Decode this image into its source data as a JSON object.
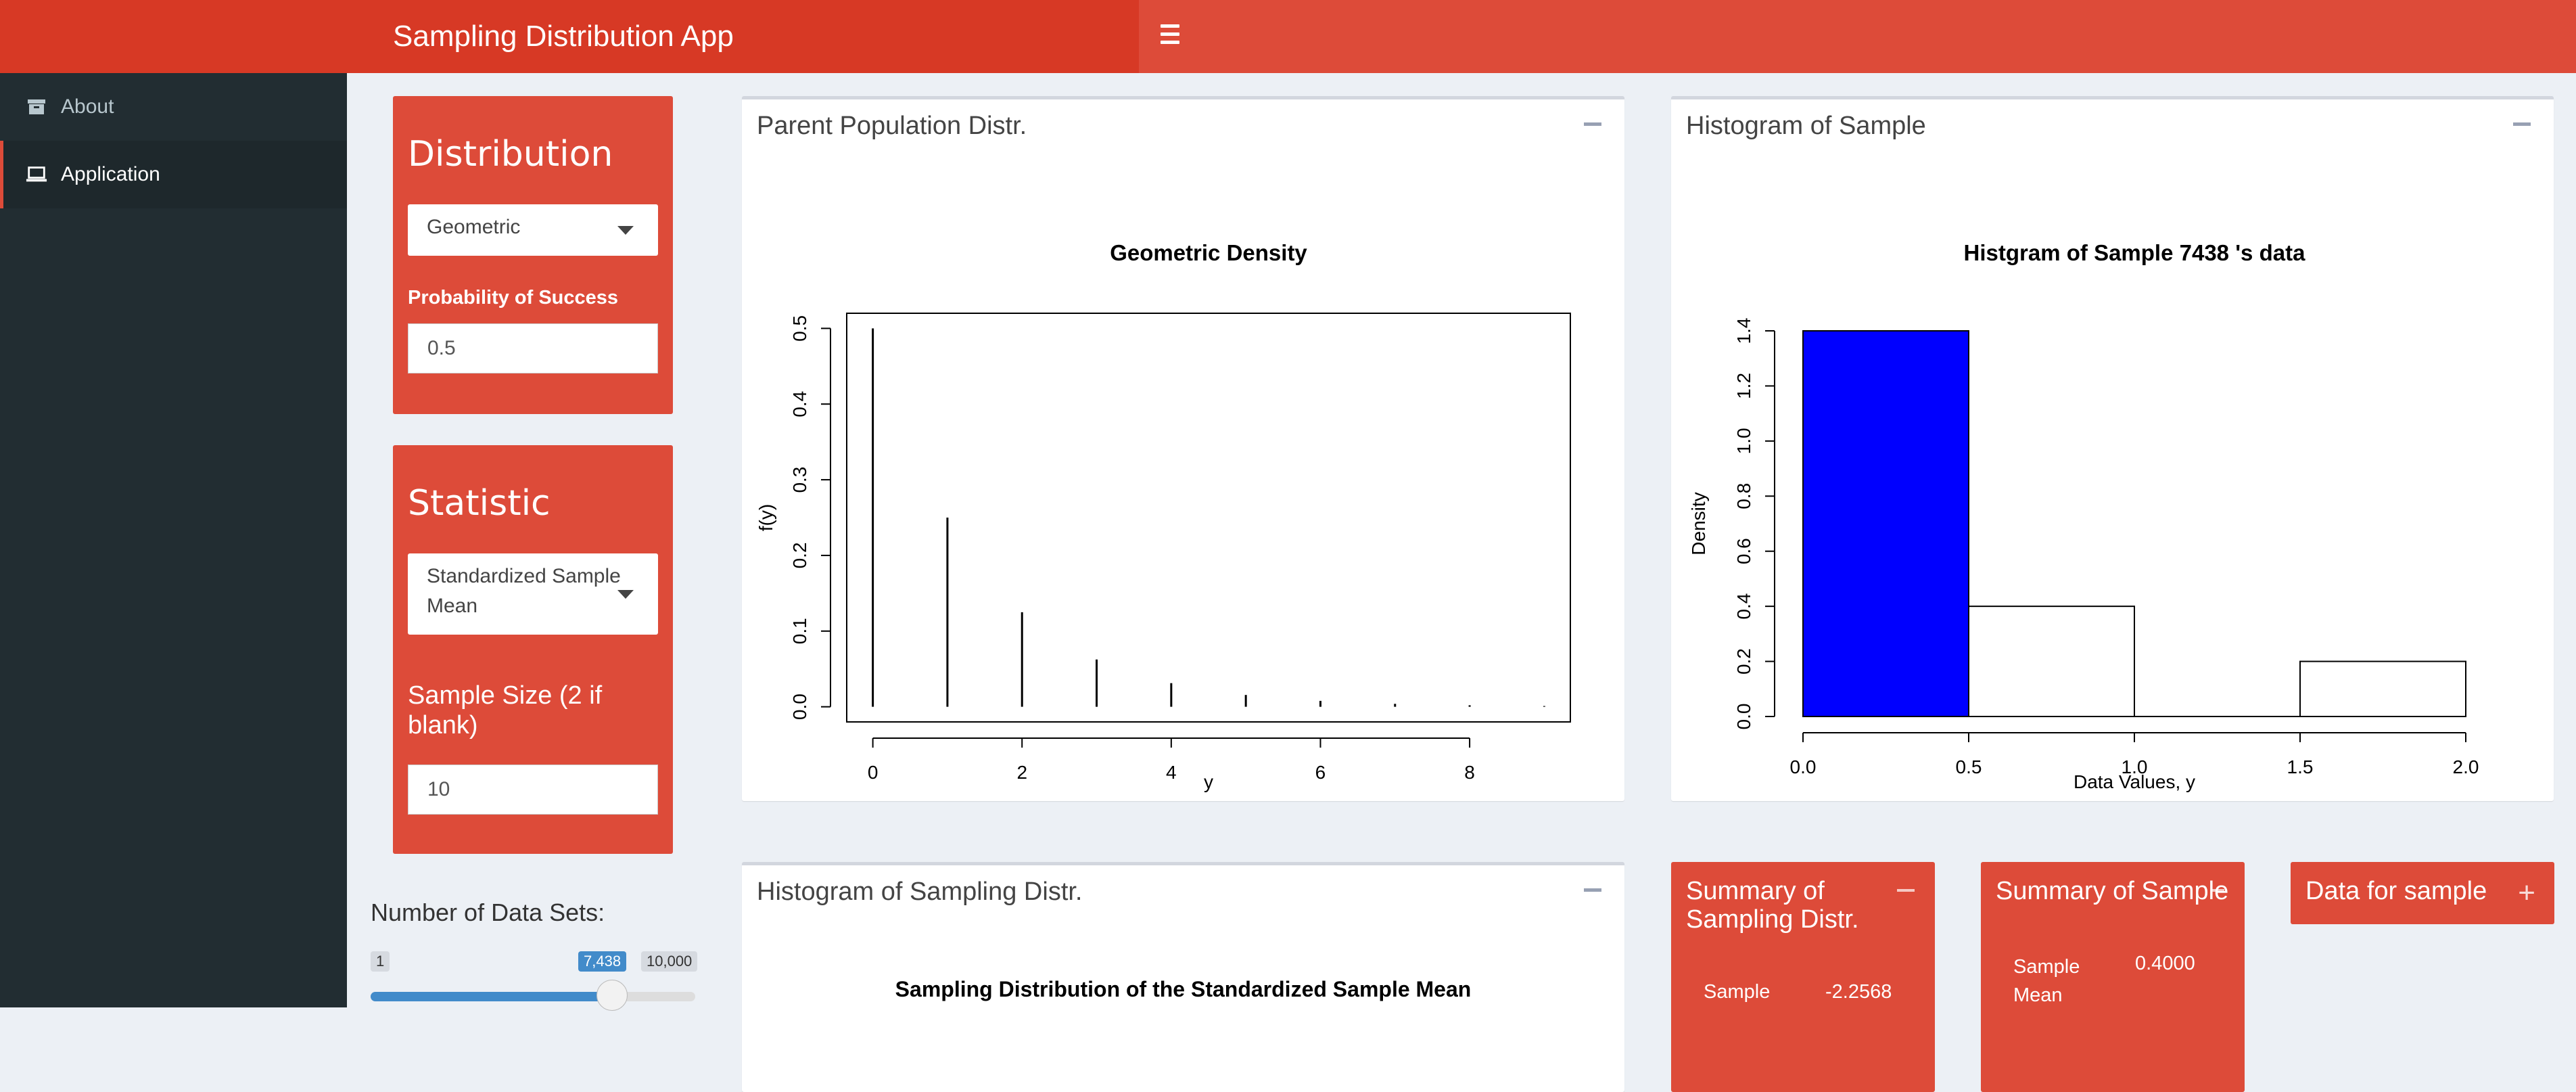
{
  "app": {
    "title": "Sampling Distribution App"
  },
  "colors": {
    "accent": "#dd4b39",
    "accent_dark": "#d73925",
    "sidebar": "#222d32",
    "content_bg": "#ecf0f5",
    "bar_fill": "#0000ff"
  },
  "sidebar": {
    "items": [
      {
        "label": "About",
        "icon": "archive-icon"
      },
      {
        "label": "Application",
        "icon": "laptop-icon"
      }
    ]
  },
  "controls": {
    "distribution": {
      "title": "Distribution",
      "selected": "Geometric",
      "param_label": "Probability of Success",
      "param_value": "0.5"
    },
    "statistic": {
      "title": "Statistic",
      "selected_line1": "Standardized Sample",
      "selected_line2": "Mean",
      "size_label_line1": "Sample Size (2 if",
      "size_label_line2": "blank)",
      "size_value": "10"
    },
    "datasets": {
      "label": "Number of Data Sets:",
      "min": "1",
      "max": "10,000",
      "value": "7,438",
      "fraction": 0.7438
    }
  },
  "panels": {
    "parent": {
      "title": "Parent Population Distr."
    },
    "histogram": {
      "title": "Histogram of Sample"
    },
    "sampling": {
      "title": "Histogram of Sampling Distr.",
      "plot_title": "Sampling Distribution of the Standardized Sample Mean"
    }
  },
  "boxes": {
    "summary_sampling": {
      "title_line1": "Summary of",
      "title_line2": "Sampling Distr.",
      "row_label": "Sample",
      "row_value": "-2.2568"
    },
    "summary_sample": {
      "title": "Summary of Sample",
      "row_label_line1": "Sample",
      "row_label_line2": "Mean",
      "row_value": "0.4000"
    },
    "data_sample": {
      "title": "Data for sample"
    }
  },
  "chart_data": [
    {
      "type": "bar",
      "title": "Geometric  Density",
      "xlabel": "y",
      "ylabel": "f(y)",
      "x": [
        0,
        1,
        2,
        3,
        4,
        5,
        6,
        7,
        8,
        9
      ],
      "values": [
        0.5,
        0.25,
        0.125,
        0.0625,
        0.03125,
        0.015625,
        0.0078125,
        0.0039,
        0.002,
        0.001
      ],
      "xlim": [
        -0.35,
        9.35
      ],
      "ylim": [
        -0.02,
        0.52
      ],
      "xticks": [
        "0",
        "2",
        "4",
        "6",
        "8"
      ],
      "yticks": [
        "0.0",
        "0.1",
        "0.2",
        "0.3",
        "0.4",
        "0.5"
      ],
      "grid": false
    },
    {
      "type": "bar",
      "title": "Histgram of Sample  7438 's data",
      "xlabel": "Data Values, y",
      "ylabel": "Density",
      "bins": [
        [
          0,
          0.5
        ],
        [
          0.5,
          1.0
        ],
        [
          1.0,
          1.5
        ],
        [
          1.5,
          2.0
        ]
      ],
      "values": [
        1.4,
        0.4,
        0.0,
        0.2
      ],
      "highlight_bin": 0,
      "xlim": [
        0,
        2.0
      ],
      "ylim": [
        0,
        1.4
      ],
      "xticks": [
        "0.0",
        "0.5",
        "1.0",
        "1.5",
        "2.0"
      ],
      "yticks": [
        "0.0",
        "0.2",
        "0.4",
        "0.6",
        "0.8",
        "1.0",
        "1.2",
        "1.4"
      ],
      "grid": false
    }
  ]
}
